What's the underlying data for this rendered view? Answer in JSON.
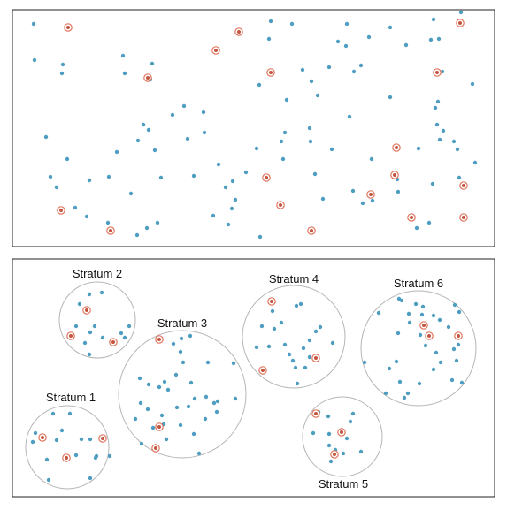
{
  "colors": {
    "point": "#4f9ec1",
    "sampled_ring": "#e0755e",
    "sampled_dot": "#c4553f",
    "circle_stroke": "#b5b5b5",
    "panel_stroke": "#222222"
  },
  "strata": [
    {
      "label": "Stratum 1"
    },
    {
      "label": "Stratum 2"
    },
    {
      "label": "Stratum 3"
    },
    {
      "label": "Stratum 4"
    },
    {
      "label": "Stratum 5"
    },
    {
      "label": "Stratum 6"
    }
  ]
}
